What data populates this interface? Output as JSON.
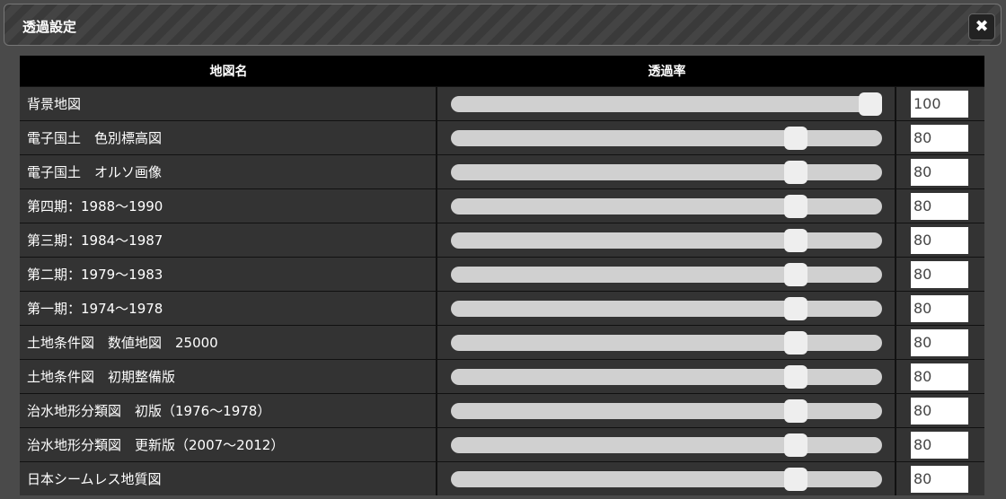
{
  "dialog": {
    "title": "透過設定",
    "close_icon": "close-icon"
  },
  "table": {
    "headers": [
      "地図名",
      "透過率"
    ],
    "rows": [
      {
        "name": "背景地図",
        "value": 100
      },
      {
        "name": "電子国土　色別標高図",
        "value": 80
      },
      {
        "name": "電子国土　オルソ画像",
        "value": 80
      },
      {
        "name": "第四期：1988〜1990",
        "value": 80
      },
      {
        "name": "第三期：1984〜1987",
        "value": 80
      },
      {
        "name": "第二期：1979〜1983",
        "value": 80
      },
      {
        "name": "第一期：1974〜1978",
        "value": 80
      },
      {
        "name": "土地条件図　数値地図　25000",
        "value": 80
      },
      {
        "name": "土地条件図　初期整備版",
        "value": 80
      },
      {
        "name": "治水地形分類図　初版（1976〜1978）",
        "value": 80
      },
      {
        "name": "治水地形分類図　更新版（2007〜2012）",
        "value": 80
      },
      {
        "name": "日本シームレス地質図",
        "value": 80
      }
    ]
  }
}
